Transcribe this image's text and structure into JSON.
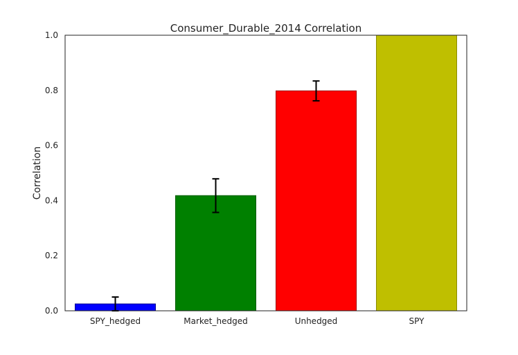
{
  "chart_data": {
    "type": "bar",
    "title": "Consumer_Durable_2014 Correlation",
    "xlabel": "",
    "ylabel": "Correlation",
    "ylim": [
      0,
      1.0
    ],
    "yticks": [
      "0.0",
      "0.2",
      "0.4",
      "0.6",
      "0.8",
      "1.0"
    ],
    "grid": false,
    "categories": [
      "SPY_hedged",
      "Market_hedged",
      "Unhedged",
      "SPY"
    ],
    "values": [
      0.025,
      0.418,
      0.798,
      1.0
    ],
    "errors": [
      0.025,
      0.061,
      0.036,
      null
    ],
    "colors": [
      "#0000ff",
      "#008000",
      "#ff0000",
      "#bfbf00"
    ],
    "edge_colors": [
      "#00008b",
      "#005a00",
      "#a00000",
      "#8a8a00"
    ]
  }
}
